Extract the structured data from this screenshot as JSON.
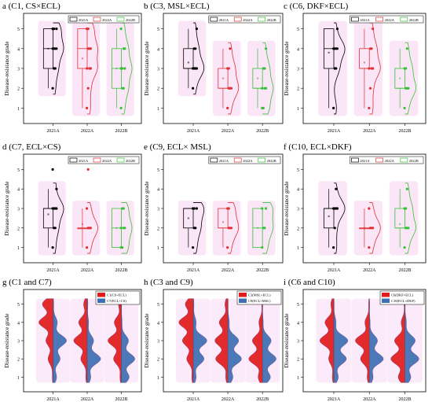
{
  "figure": {
    "y_axis_label": "Disease-resistance grade",
    "colors": {
      "2021A": "#000000",
      "2022A": "#e03030",
      "2022B": "#35c235",
      "shade": "#f3b8ea",
      "split_red": "#e01b1b",
      "split_blue": "#3f6fb3"
    }
  },
  "chart_data": [
    {
      "type": "box-violin",
      "title": "a (C1, CS×ECL)",
      "ylabel": "Disease-resistance grade",
      "ylim": [
        0.5,
        5.5
      ],
      "yticks": [
        1,
        2,
        3,
        4,
        5
      ],
      "categories": [
        "2021A",
        "2022A",
        "2022B"
      ],
      "legend": [
        "2021A",
        "2022A",
        "2022B"
      ],
      "series": [
        {
          "category": "2021A",
          "q1": 3,
          "median": 4,
          "q3": 5,
          "whisker_low": 2,
          "whisker_high": 5,
          "mean": 4.0,
          "points": [
            2,
            3,
            3,
            4,
            4,
            4,
            4,
            5,
            5,
            5
          ]
        },
        {
          "category": "2022A",
          "q1": 3,
          "median": 4,
          "q3": 5,
          "whisker_low": 1,
          "whisker_high": 5,
          "mean": 3.5,
          "points": [
            1,
            2,
            3,
            3,
            3,
            4,
            4,
            4,
            5,
            5
          ]
        },
        {
          "category": "2022B",
          "q1": 2,
          "median": 3,
          "q3": 4,
          "whisker_low": 1,
          "whisker_high": 5,
          "mean": 3.0,
          "points": [
            1,
            2,
            2,
            3,
            3,
            3,
            4,
            4,
            5
          ]
        }
      ]
    },
    {
      "type": "box-violin",
      "title": "b (C3, MSL×ECL)",
      "ylabel": "Disease-resistance grade",
      "ylim": [
        0.5,
        5.5
      ],
      "yticks": [
        1,
        2,
        3,
        4,
        5
      ],
      "categories": [
        "2021A",
        "2022A",
        "2022B"
      ],
      "legend": [
        "2021A",
        "2022A",
        "2022B"
      ],
      "series": [
        {
          "category": "2021A",
          "q1": 3,
          "median": 3,
          "q3": 4,
          "whisker_low": 2,
          "whisker_high": 5,
          "mean": 3.3,
          "points": [
            2,
            3,
            3,
            3,
            3,
            4,
            4,
            5
          ]
        },
        {
          "category": "2022A",
          "q1": 2,
          "median": 2,
          "q3": 3,
          "whisker_low": 1,
          "whisker_high": 4,
          "mean": 2.5,
          "points": [
            1,
            2,
            2,
            2,
            3,
            3,
            4
          ]
        },
        {
          "category": "2022B",
          "q1": 2,
          "median": 2,
          "q3": 3,
          "whisker_low": 1,
          "whisker_high": 4,
          "mean": 2.5,
          "points": [
            1,
            1,
            2,
            2,
            2,
            3,
            3,
            4
          ]
        }
      ]
    },
    {
      "type": "box-violin",
      "title": "c (C6, DKF×ECL)",
      "ylabel": "Disease-resistance grade",
      "ylim": [
        0.5,
        5.5
      ],
      "yticks": [
        1,
        2,
        3,
        4,
        5
      ],
      "categories": [
        "2021A",
        "2022A",
        "2022B"
      ],
      "legend": [
        "2021A",
        "2022A",
        "2022B"
      ],
      "series": [
        {
          "category": "2021A",
          "q1": 3,
          "median": 4,
          "q3": 5,
          "whisker_low": 1,
          "whisker_high": 5,
          "mean": 3.8,
          "points": [
            1,
            3,
            3,
            4,
            4,
            4,
            4,
            5
          ]
        },
        {
          "category": "2022A",
          "q1": 3,
          "median": 3,
          "q3": 4,
          "whisker_low": 1,
          "whisker_high": 5,
          "mean": 3.3,
          "points": [
            1,
            2,
            3,
            3,
            3,
            4,
            4,
            5
          ]
        },
        {
          "category": "2022B",
          "q1": 2,
          "median": 2,
          "q3": 3,
          "whisker_low": 1,
          "whisker_high": 4,
          "mean": 2.5,
          "points": [
            1,
            2,
            2,
            2,
            3,
            3,
            4
          ]
        }
      ]
    },
    {
      "type": "box-violin",
      "title": "d (C7, ECL×CS)",
      "ylabel": "Disease-resistance grade",
      "ylim": [
        0.5,
        5.5
      ],
      "yticks": [
        1,
        2,
        3,
        4,
        5
      ],
      "categories": [
        "2021A",
        "2022A",
        "2022B"
      ],
      "legend": [
        "2021A",
        "2022A",
        "2022B"
      ],
      "series": [
        {
          "category": "2021A",
          "q1": 2,
          "median": 3,
          "q3": 3,
          "whisker_low": 1,
          "whisker_high": 4,
          "mean": 2.7,
          "points": [
            1,
            2,
            2,
            3,
            3,
            3,
            3,
            4,
            5
          ]
        },
        {
          "category": "2022A",
          "q1": 2,
          "median": 2,
          "q3": 2,
          "whisker_low": 1,
          "whisker_high": 3,
          "mean": 2.2,
          "points": [
            1,
            2,
            2,
            2,
            3,
            5
          ]
        },
        {
          "category": "2022B",
          "q1": 1,
          "median": 2,
          "q3": 3,
          "whisker_low": 1,
          "whisker_high": 3,
          "mean": 2.0,
          "points": [
            1,
            1,
            2,
            2,
            2,
            3,
            3
          ]
        }
      ]
    },
    {
      "type": "box-violin",
      "title": "e (C9, ECL× MSL)",
      "ylabel": "Disease-resistance grade",
      "ylim": [
        0.5,
        5.5
      ],
      "yticks": [
        1,
        2,
        3,
        4,
        5
      ],
      "categories": [
        "2021A",
        "2022A",
        "2022B"
      ],
      "legend": [
        "2021A",
        "2022A",
        "2022B"
      ],
      "series": [
        {
          "category": "2021A",
          "q1": 2,
          "median": 3,
          "q3": 3,
          "whisker_low": 1,
          "whisker_high": 3,
          "mean": 2.5,
          "points": [
            1,
            2,
            2,
            3,
            3,
            3
          ]
        },
        {
          "category": "2022A",
          "q1": 2,
          "median": 2,
          "q3": 3,
          "whisker_low": 1,
          "whisker_high": 3,
          "mean": 2.3,
          "points": [
            1,
            2,
            2,
            2,
            3,
            3
          ]
        },
        {
          "category": "2022B",
          "q1": 1,
          "median": 2,
          "q3": 3,
          "whisker_low": 1,
          "whisker_high": 3,
          "mean": 2.0,
          "points": [
            1,
            2,
            2,
            3,
            3
          ]
        }
      ]
    },
    {
      "type": "box-violin",
      "title": "f (C10, ECL×DKF)",
      "ylabel": "Disease-resistance grade",
      "ylim": [
        0.5,
        5.5
      ],
      "yticks": [
        1,
        2,
        3,
        4,
        5
      ],
      "categories": [
        "2021A",
        "2022A",
        "2022B"
      ],
      "legend": [
        "2021A",
        "2022A",
        "2022B"
      ],
      "series": [
        {
          "category": "2021A",
          "q1": 2,
          "median": 3,
          "q3": 3,
          "whisker_low": 1,
          "whisker_high": 4,
          "mean": 2.6,
          "points": [
            1,
            2,
            3,
            3,
            3,
            3,
            4
          ]
        },
        {
          "category": "2022A",
          "q1": 2,
          "median": 2,
          "q3": 2,
          "whisker_low": 1,
          "whisker_high": 3,
          "mean": 2.0,
          "points": [
            1,
            2,
            2,
            2,
            3
          ]
        },
        {
          "category": "2022B",
          "q1": 2,
          "median": 2,
          "q3": 3,
          "whisker_low": 1,
          "whisker_high": 4,
          "mean": 2.2,
          "points": [
            1,
            2,
            2,
            2,
            3,
            3,
            4
          ]
        }
      ]
    },
    {
      "type": "split-violin",
      "title": "g (C1 and C7)",
      "ylabel": "Disease-resistance grade",
      "ylim": [
        0.5,
        5.5
      ],
      "yticks": [
        1,
        2,
        3,
        4,
        5
      ],
      "categories": [
        "2021A",
        "2022A",
        "2022B"
      ],
      "legend": [
        "C1(CS×ECL)",
        "C7(ECL×CS)"
      ],
      "series": [
        {
          "name": "C1(CS×ECL)",
          "color": "#e01b1b",
          "values": [
            {
              "1": 0.05,
              "2": 0.35,
              "3": 0.5,
              "4": 1.0,
              "5": 0.75
            },
            {
              "1": 0.1,
              "2": 0.45,
              "3": 0.95,
              "4": 0.6,
              "5": 0.25
            },
            {
              "1": 0.1,
              "2": 0.55,
              "3": 0.95,
              "4": 0.5,
              "5": 0.2
            }
          ]
        },
        {
          "name": "C7(ECL×CS)",
          "color": "#3f6fb3",
          "values": [
            {
              "1": 0.25,
              "2": 0.5,
              "3": 0.95,
              "4": 0.3,
              "5": 0.05
            },
            {
              "1": 0.25,
              "2": 0.95,
              "3": 0.45,
              "4": 0.1,
              "5": 0.05
            },
            {
              "1": 0.55,
              "2": 0.95,
              "3": 0.5,
              "4": 0.05,
              "5": 0.02
            }
          ]
        }
      ]
    },
    {
      "type": "split-violin",
      "title": "h (C3 and C9)",
      "ylabel": "Disease-resistance grade",
      "ylim": [
        0.5,
        5.5
      ],
      "yticks": [
        1,
        2,
        3,
        4,
        5
      ],
      "categories": [
        "2021A",
        "2022A",
        "2022B"
      ],
      "legend": [
        "C3(MSL×ECL)",
        "C9(ECL×MSL)"
      ],
      "series": [
        {
          "name": "C3(MSL×ECL)",
          "color": "#e01b1b",
          "values": [
            {
              "1": 0.1,
              "2": 0.45,
              "3": 0.75,
              "4": 1.0,
              "5": 0.55
            },
            {
              "1": 0.15,
              "2": 0.85,
              "3": 0.9,
              "4": 0.6,
              "5": 0.2
            },
            {
              "1": 0.3,
              "2": 0.95,
              "3": 0.7,
              "4": 0.25,
              "5": 0.05
            }
          ]
        },
        {
          "name": "C9(ECL×MSL)",
          "color": "#3f6fb3",
          "values": [
            {
              "1": 0.2,
              "2": 0.75,
              "3": 0.95,
              "4": 0.2,
              "5": 0.05
            },
            {
              "1": 0.35,
              "2": 0.95,
              "3": 0.75,
              "4": 0.1,
              "5": 0.02
            },
            {
              "1": 0.55,
              "2": 0.95,
              "3": 0.6,
              "4": 0.05,
              "5": 0.02
            }
          ]
        }
      ]
    },
    {
      "type": "split-violin",
      "title": "i (C6 and C10)",
      "ylabel": "Disease-resistance grade",
      "ylim": [
        0.5,
        5.5
      ],
      "yticks": [
        1,
        2,
        3,
        4,
        5
      ],
      "categories": [
        "2021A",
        "2022A",
        "2022B"
      ],
      "legend": [
        "C6(DKF×ECL)",
        "C10(ECL×DKF)"
      ],
      "series": [
        {
          "name": "C6(DKF×ECL)",
          "color": "#e01b1b",
          "values": [
            {
              "1": 0.1,
              "2": 0.35,
              "3": 0.95,
              "4": 0.6,
              "5": 0.2
            },
            {
              "1": 0.15,
              "2": 0.6,
              "3": 0.95,
              "4": 0.3,
              "5": 0.05
            },
            {
              "1": 0.45,
              "2": 0.95,
              "3": 0.7,
              "4": 0.25,
              "5": 0.05
            }
          ]
        },
        {
          "name": "C10(ECL×DKF)",
          "color": "#3f6fb3",
          "values": [
            {
              "1": 0.3,
              "2": 0.85,
              "3": 0.95,
              "4": 0.15,
              "5": 0.02
            },
            {
              "1": 0.25,
              "2": 0.95,
              "3": 0.55,
              "4": 0.05,
              "5": 0.02
            },
            {
              "1": 0.4,
              "2": 0.95,
              "3": 0.7,
              "4": 0.1,
              "5": 0.02
            }
          ]
        }
      ]
    }
  ]
}
